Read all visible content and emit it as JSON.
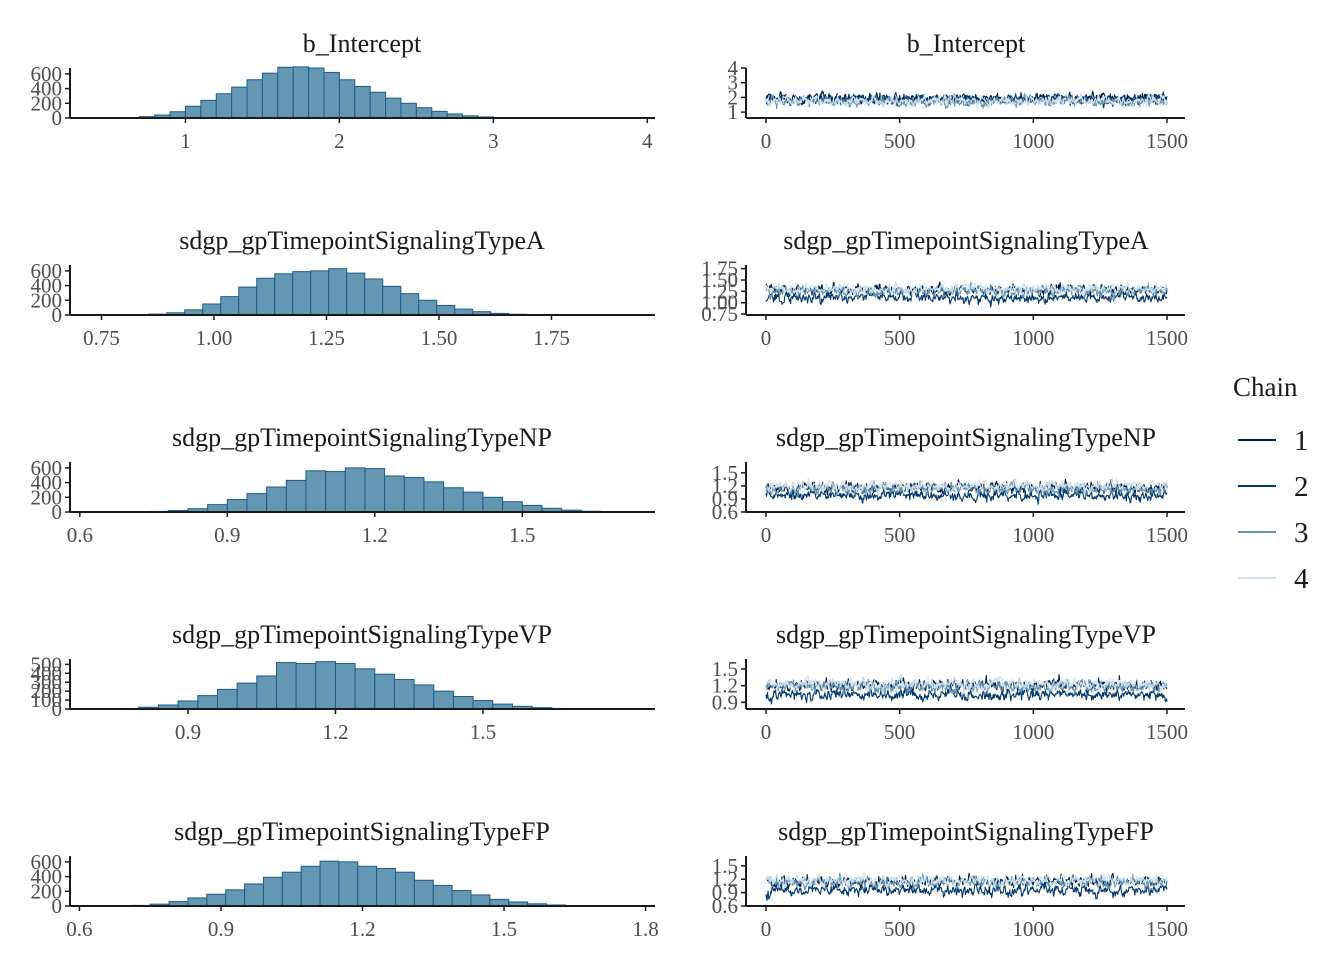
{
  "chart_data": {
    "type": "bar",
    "figure": "MCMC posterior histograms and trace plots",
    "colors": {
      "hist_fill": "#6497b1",
      "hist_edge": "#1b5d8c",
      "chain_1": "#011f4b",
      "chain_2": "#03396c",
      "chain_3": "#6497b1",
      "chain_4": "#d1e1ec",
      "axis": "#1a1a1a"
    },
    "legend": {
      "title": "Chain",
      "position": "right",
      "entries": [
        "1",
        "2",
        "3",
        "4"
      ]
    },
    "parameters": [
      {
        "name": "b_Intercept",
        "hist": {
          "type": "histogram",
          "title": "b_Intercept",
          "xlim": [
            0.25,
            4.05
          ],
          "xticks": [
            1,
            2,
            3,
            4
          ],
          "xtick_labels": [
            "1",
            "2",
            "3",
            "4"
          ],
          "ylim": [
            0,
            680
          ],
          "yticks": [
            0,
            200,
            400,
            600
          ],
          "ytick_labels": [
            "0",
            "200",
            "400",
            "600"
          ],
          "bins_start": 0.5,
          "bin_width": 0.1,
          "counts": [
            2,
            6,
            18,
            40,
            85,
            160,
            240,
            330,
            420,
            520,
            610,
            690,
            695,
            680,
            620,
            520,
            430,
            350,
            270,
            200,
            140,
            90,
            55,
            30,
            14,
            6,
            2
          ]
        },
        "trace": {
          "type": "line",
          "title": "b_Intercept",
          "xlim": [
            0,
            1500
          ],
          "xticks": [
            0,
            500,
            1000,
            1500
          ],
          "xtick_labels": [
            "0",
            "500",
            "1000",
            "1500"
          ],
          "ylim": [
            0.6,
            4.0
          ],
          "yticks": [
            1,
            2,
            3,
            4
          ],
          "ytick_labels": [
            "1",
            "2",
            "3",
            "4"
          ],
          "center": 1.83,
          "chain_offsets": [
            0.12,
            0.0,
            -0.1,
            -0.05
          ],
          "spread": 0.42,
          "iterations": 1500
        }
      },
      {
        "name": "sdgp_gpTimepointSignalingTypeA",
        "hist": {
          "type": "histogram",
          "title": "sdgp_gpTimepointSignalingTypeA",
          "xlim": [
            0.68,
            1.98
          ],
          "xticks": [
            0.75,
            1.0,
            1.25,
            1.5,
            1.75
          ],
          "xtick_labels": [
            "0.75",
            "1.00",
            "1.25",
            "1.50",
            "1.75"
          ],
          "ylim": [
            0,
            680
          ],
          "yticks": [
            0,
            200,
            400,
            600
          ],
          "ytick_labels": [
            "0",
            "200",
            "400",
            "600"
          ],
          "bins_start": 0.775,
          "bin_width": 0.04,
          "counts": [
            1,
            4,
            12,
            30,
            70,
            150,
            250,
            380,
            500,
            560,
            590,
            600,
            630,
            570,
            490,
            390,
            290,
            200,
            130,
            80,
            45,
            22,
            10,
            4,
            1
          ]
        },
        "trace": {
          "type": "line",
          "title": "sdgp_gpTimepointSignalingTypeA",
          "xlim": [
            0,
            1500
          ],
          "xticks": [
            0,
            500,
            1000,
            1500
          ],
          "xtick_labels": [
            "0",
            "500",
            "1000",
            "1500"
          ],
          "ylim": [
            0.73,
            1.83
          ],
          "yticks": [
            0.75,
            1.0,
            1.25,
            1.5,
            1.75
          ],
          "ytick_labels": [
            "0.75",
            "1.00",
            "1.25",
            "1.50",
            "1.75"
          ],
          "center": 1.24,
          "chain_offsets": [
            0.05,
            -0.12,
            0.02,
            0.06
          ],
          "spread": 0.14,
          "iterations": 1500
        }
      },
      {
        "name": "sdgp_gpTimepointSignalingTypeNP",
        "hist": {
          "type": "histogram",
          "title": "sdgp_gpTimepointSignalingTypeNP",
          "xlim": [
            0.58,
            1.77
          ],
          "xticks": [
            0.6,
            0.9,
            1.2,
            1.5
          ],
          "xtick_labels": [
            "0.6",
            "0.9",
            "1.2",
            "1.5"
          ],
          "ylim": [
            0,
            680
          ],
          "yticks": [
            0,
            200,
            400,
            600
          ],
          "ytick_labels": [
            "0",
            "200",
            "400",
            "600"
          ],
          "bins_start": 0.7,
          "bin_width": 0.04,
          "counts": [
            2,
            8,
            20,
            45,
            100,
            170,
            250,
            340,
            430,
            560,
            550,
            600,
            590,
            490,
            470,
            410,
            330,
            270,
            200,
            140,
            90,
            50,
            25,
            10,
            4,
            1
          ]
        },
        "trace": {
          "type": "line",
          "title": "sdgp_gpTimepointSignalingTypeNP",
          "xlim": [
            0,
            1500
          ],
          "xticks": [
            0,
            500,
            1000,
            1500
          ],
          "xtick_labels": [
            "0",
            "500",
            "1000",
            "1500"
          ],
          "ylim": [
            0.6,
            1.75
          ],
          "yticks": [
            0.6,
            0.9,
            1.2,
            1.5
          ],
          "ytick_labels": [
            "0.6",
            "0.9",
            "1.2",
            "1.5"
          ],
          "center": 1.12,
          "chain_offsets": [
            0.04,
            -0.14,
            0.02,
            0.08
          ],
          "spread": 0.15,
          "iterations": 1500
        }
      },
      {
        "name": "sdgp_gpTimepointSignalingTypeVP",
        "hist": {
          "type": "histogram",
          "title": "sdgp_gpTimepointSignalingTypeVP",
          "xlim": [
            0.66,
            1.85
          ],
          "xticks": [
            0.9,
            1.2,
            1.5
          ],
          "xtick_labels": [
            "0.9",
            "1.2",
            "1.5"
          ],
          "ylim": [
            0,
            560
          ],
          "yticks": [
            0,
            100,
            200,
            300,
            400,
            500
          ],
          "ytick_labels": [
            "0",
            "100",
            "200",
            "300",
            "400",
            "500"
          ],
          "bins_start": 0.72,
          "bin_width": 0.04,
          "counts": [
            2,
            6,
            20,
            45,
            90,
            150,
            220,
            290,
            370,
            520,
            510,
            530,
            510,
            450,
            390,
            330,
            270,
            200,
            140,
            95,
            55,
            30,
            15,
            6,
            2
          ]
        },
        "trace": {
          "type": "line",
          "title": "sdgp_gpTimepointSignalingTypeVP",
          "xlim": [
            0,
            1500
          ],
          "xticks": [
            0,
            500,
            1000,
            1500
          ],
          "xtick_labels": [
            "0",
            "500",
            "1000",
            "1500"
          ],
          "ylim": [
            0.78,
            1.68
          ],
          "yticks": [
            0.9,
            1.2,
            1.5
          ],
          "ytick_labels": [
            "0.9",
            "1.2",
            "1.5"
          ],
          "center": 1.16,
          "chain_offsets": [
            0.05,
            -0.13,
            0.02,
            0.07
          ],
          "spread": 0.13,
          "iterations": 1500
        }
      },
      {
        "name": "sdgp_gpTimepointSignalingTypeFP",
        "hist": {
          "type": "histogram",
          "title": "sdgp_gpTimepointSignalingTypeFP",
          "xlim": [
            0.58,
            1.82
          ],
          "xticks": [
            0.6,
            0.9,
            1.2,
            1.5,
            1.8
          ],
          "xtick_labels": [
            "0.6",
            "0.9",
            "1.2",
            "1.5",
            "1.8"
          ],
          "ylim": [
            0,
            680
          ],
          "yticks": [
            0,
            200,
            400,
            600
          ],
          "ytick_labels": [
            "0",
            "200",
            "400",
            "600"
          ],
          "bins_start": 0.67,
          "bin_width": 0.04,
          "counts": [
            2,
            8,
            25,
            60,
            110,
            160,
            220,
            300,
            390,
            460,
            540,
            610,
            600,
            540,
            510,
            460,
            350,
            280,
            210,
            150,
            90,
            55,
            30,
            14,
            5,
            2
          ]
        },
        "trace": {
          "type": "line",
          "title": "sdgp_gpTimepointSignalingTypeFP",
          "xlim": [
            0,
            1500
          ],
          "xticks": [
            0,
            500,
            1000,
            1500
          ],
          "xtick_labels": [
            "0",
            "500",
            "1000",
            "1500"
          ],
          "ylim": [
            0.6,
            1.72
          ],
          "yticks": [
            0.6,
            0.9,
            1.2,
            1.5
          ],
          "ytick_labels": [
            "0.6",
            "0.9",
            "1.2",
            "1.5"
          ],
          "center": 1.1,
          "chain_offsets": [
            0.05,
            -0.14,
            0.03,
            0.07
          ],
          "spread": 0.15,
          "iterations": 1500
        }
      }
    ]
  }
}
